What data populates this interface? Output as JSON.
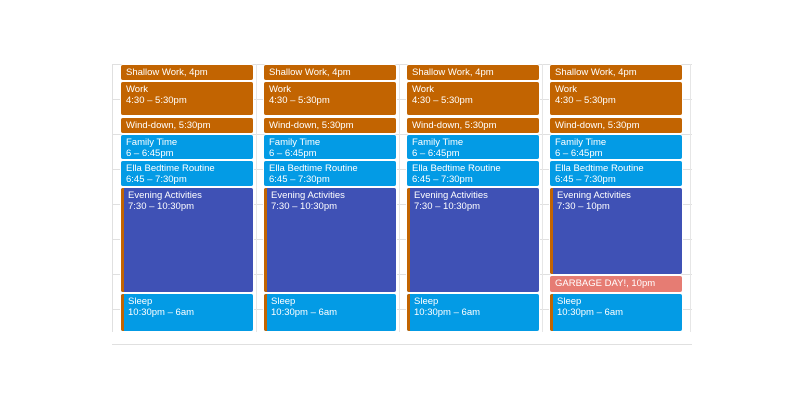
{
  "colors": {
    "shallow": "#c26401",
    "work": "#c26401",
    "wind": "#c26401",
    "family": "#039be5",
    "ella": "#039be5",
    "evening": "#3f51b5",
    "sleep": "#039be5",
    "garbage": "#e67c73",
    "accent": "#c26401"
  },
  "days": [
    {
      "events": [
        {
          "key": "shallow",
          "title": "Shallow Work",
          "time": ", 4pm",
          "inline": true
        },
        {
          "key": "work",
          "title": "Work",
          "time": "4:30 – 5:30pm",
          "inline": false
        },
        {
          "key": "wind",
          "title": "Wind-down",
          "time": ", 5:30pm",
          "inline": true
        },
        {
          "key": "family",
          "title": "Family Time",
          "time": "6 – 6:45pm",
          "inline": false
        },
        {
          "key": "ella",
          "title": "Ella Bedtime Routine",
          "time": "6:45 – 7:30pm",
          "inline": false
        },
        {
          "key": "evening",
          "title": "Evening Activities",
          "time": "7:30 – 10:30pm",
          "inline": false
        },
        {
          "key": "sleep",
          "title": "Sleep",
          "time": "10:30pm – 6am",
          "inline": false
        }
      ]
    },
    {
      "events": [
        {
          "key": "shallow",
          "title": "Shallow Work",
          "time": ", 4pm",
          "inline": true
        },
        {
          "key": "work",
          "title": "Work",
          "time": "4:30 – 5:30pm",
          "inline": false
        },
        {
          "key": "wind",
          "title": "Wind-down",
          "time": ", 5:30pm",
          "inline": true
        },
        {
          "key": "family",
          "title": "Family Time",
          "time": "6 – 6:45pm",
          "inline": false
        },
        {
          "key": "ella",
          "title": "Ella Bedtime Routine",
          "time": "6:45 – 7:30pm",
          "inline": false
        },
        {
          "key": "evening",
          "title": "Evening Activities",
          "time": "7:30 – 10:30pm",
          "inline": false
        },
        {
          "key": "sleep",
          "title": "Sleep",
          "time": "10:30pm – 6am",
          "inline": false
        }
      ]
    },
    {
      "events": [
        {
          "key": "shallow",
          "title": "Shallow Work",
          "time": ", 4pm",
          "inline": true
        },
        {
          "key": "work",
          "title": "Work",
          "time": "4:30 – 5:30pm",
          "inline": false
        },
        {
          "key": "wind",
          "title": "Wind-down",
          "time": ", 5:30pm",
          "inline": true
        },
        {
          "key": "family",
          "title": "Family Time",
          "time": "6 – 6:45pm",
          "inline": false
        },
        {
          "key": "ella",
          "title": "Ella Bedtime Routine",
          "time": "6:45 – 7:30pm",
          "inline": false
        },
        {
          "key": "evening",
          "title": "Evening Activities",
          "time": "7:30 – 10:30pm",
          "inline": false
        },
        {
          "key": "sleep",
          "title": "Sleep",
          "time": "10:30pm – 6am",
          "inline": false
        }
      ]
    },
    {
      "events": [
        {
          "key": "shallow",
          "title": "Shallow Work",
          "time": ", 4pm",
          "inline": true
        },
        {
          "key": "work",
          "title": "Work",
          "time": "4:30 – 5:30pm",
          "inline": false
        },
        {
          "key": "wind",
          "title": "Wind-down",
          "time": ", 5:30pm",
          "inline": true
        },
        {
          "key": "family",
          "title": "Family Time",
          "time": "6 – 6:45pm",
          "inline": false
        },
        {
          "key": "ella",
          "title": "Ella Bedtime Routine",
          "time": "6:45 – 7:30pm",
          "inline": false
        },
        {
          "key": "evening",
          "title": "Evening Activities",
          "time": "7:30 – 10pm",
          "inline": false
        },
        {
          "key": "garbage",
          "title": "GARBAGE DAY!",
          "time": ", 10pm",
          "inline": true
        },
        {
          "key": "sleep",
          "title": "Sleep",
          "time": "10:30pm – 6am",
          "inline": false
        }
      ]
    }
  ]
}
